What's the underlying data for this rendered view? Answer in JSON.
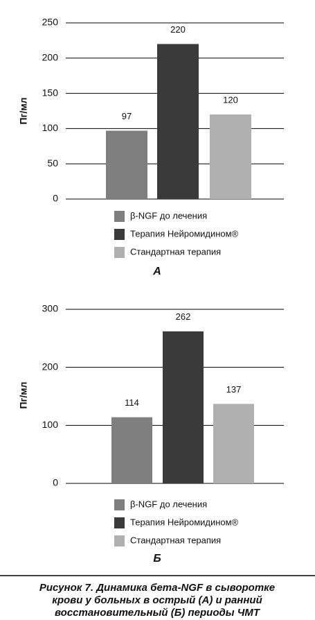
{
  "chart_data": [
    {
      "type": "bar",
      "title": "А",
      "ylabel": "Пг/мл",
      "series": [
        {
          "name": "β-NGF до лечения",
          "color": "#7f7f7f",
          "values": [
            97
          ]
        },
        {
          "name": "Терапия Нейромидином®",
          "color": "#3a3a3a",
          "values": [
            220
          ]
        },
        {
          "name": "Стандартная терапия",
          "color": "#b0b0b0",
          "values": [
            120
          ]
        }
      ],
      "ylim": [
        0,
        250
      ],
      "yticks": [
        0,
        50,
        100,
        150,
        200,
        250
      ],
      "grid": true
    },
    {
      "type": "bar",
      "title": "Б",
      "ylabel": "Пг/мл",
      "series": [
        {
          "name": "β-NGF до лечения",
          "color": "#7f7f7f",
          "values": [
            114
          ]
        },
        {
          "name": "Терапия Нейромидином®",
          "color": "#3a3a3a",
          "values": [
            262
          ]
        },
        {
          "name": "Стандартная терапия",
          "color": "#b0b0b0",
          "values": [
            137
          ]
        }
      ],
      "ylim": [
        0,
        300
      ],
      "yticks": [
        0,
        100,
        200,
        300
      ],
      "grid": true
    }
  ],
  "caption": [
    "Рисунок 7. Динамика бета-NGF в сыворотке",
    "крови у больных в острый (А) и ранний",
    "восстановительный (Б) периоды ЧМТ"
  ]
}
